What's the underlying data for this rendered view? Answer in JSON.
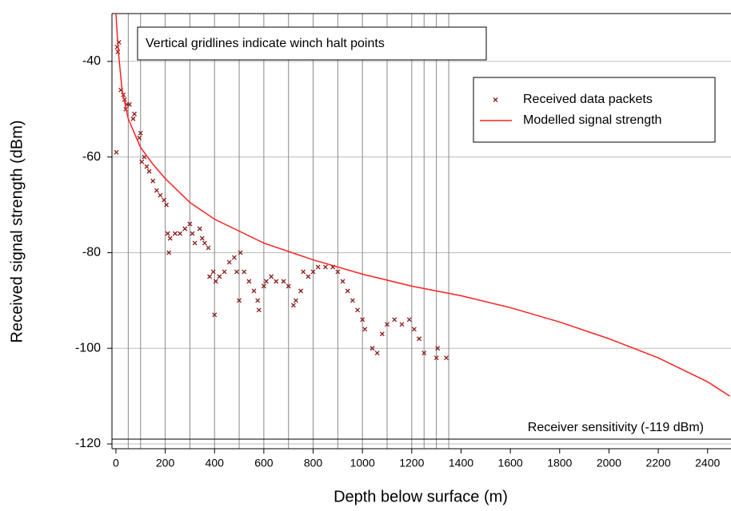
{
  "chart_data": {
    "type": "scatter",
    "xlabel": "Depth below surface (m)",
    "ylabel": "Received signal strength (dBm)",
    "xlim": [
      -16,
      2495
    ],
    "ylim": [
      -121,
      -30
    ],
    "xticks": [
      0,
      200,
      400,
      600,
      800,
      1000,
      1200,
      1400,
      1600,
      1800,
      2000,
      2200,
      2400
    ],
    "yticks": [
      -120,
      -100,
      -80,
      -60,
      -40
    ],
    "grid": true,
    "legend": "upper right",
    "vertical_gridlines": [
      50,
      100,
      200,
      300,
      400,
      500,
      600,
      700,
      800,
      900,
      1000,
      1100,
      1200,
      1250,
      1300,
      1350
    ],
    "annotations": [
      {
        "text": "Vertical gridlines indicate winch halt points"
      }
    ],
    "sensitivity": {
      "value": -119,
      "label": "Receiver sensitivity (-119 dBm)"
    },
    "series": [
      {
        "name": "Received data packets",
        "type": "scatter",
        "color": "#8b1a1a",
        "x": [
          2,
          5,
          8,
          12,
          20,
          30,
          35,
          40,
          45,
          55,
          70,
          75,
          95,
          100,
          105,
          115,
          125,
          135,
          150,
          165,
          180,
          195,
          205,
          210,
          215,
          220,
          240,
          260,
          280,
          300,
          310,
          320,
          340,
          350,
          360,
          375,
          380,
          395,
          400,
          405,
          420,
          440,
          460,
          480,
          490,
          500,
          505,
          520,
          540,
          560,
          575,
          580,
          600,
          610,
          630,
          650,
          680,
          700,
          720,
          730,
          750,
          760,
          780,
          800,
          820,
          850,
          880,
          900,
          920,
          940,
          960,
          980,
          1000,
          1010,
          1040,
          1060,
          1080,
          1100,
          1130,
          1160,
          1190,
          1210,
          1230,
          1250,
          1300,
          1305,
          1340
        ],
        "values": [
          -59,
          -37,
          -38,
          -36,
          -46,
          -47,
          -48,
          -50,
          -49,
          -49,
          -52,
          -51,
          -56,
          -55,
          -61,
          -60,
          -62,
          -63,
          -65,
          -67,
          -68,
          -69,
          -70,
          -76,
          -80,
          -77,
          -76,
          -76,
          -75,
          -74,
          -76,
          -78,
          -75,
          -77,
          -78,
          -79,
          -85,
          -84,
          -93,
          -86,
          -85,
          -84,
          -82,
          -81,
          -84,
          -90,
          -80,
          -84,
          -86,
          -88,
          -90,
          -92,
          -87,
          -86,
          -85,
          -86,
          -86,
          -87,
          -91,
          -90,
          -88,
          -84,
          -85,
          -84,
          -83,
          -83,
          -83,
          -84,
          -86,
          -88,
          -90,
          -92,
          -94,
          -96,
          -100,
          -101,
          -97,
          -95,
          -94,
          -95,
          -94,
          -96,
          -98,
          -101,
          -102,
          -100,
          -102
        ]
      },
      {
        "name": "Modelled signal strength",
        "type": "line",
        "color": "#ff2020",
        "x": [
          0,
          10,
          25,
          50,
          100,
          150,
          200,
          300,
          400,
          500,
          600,
          800,
          1000,
          1200,
          1400,
          1600,
          1800,
          2000,
          2200,
          2300,
          2400,
          2490
        ],
        "values": [
          -30,
          -38,
          -46,
          -52,
          -58,
          -61.5,
          -64.5,
          -69.5,
          -73,
          -75.5,
          -78,
          -81.5,
          -84.5,
          -87,
          -89,
          -91.5,
          -94.5,
          -98,
          -102,
          -104.5,
          -107,
          -110
        ]
      }
    ]
  }
}
